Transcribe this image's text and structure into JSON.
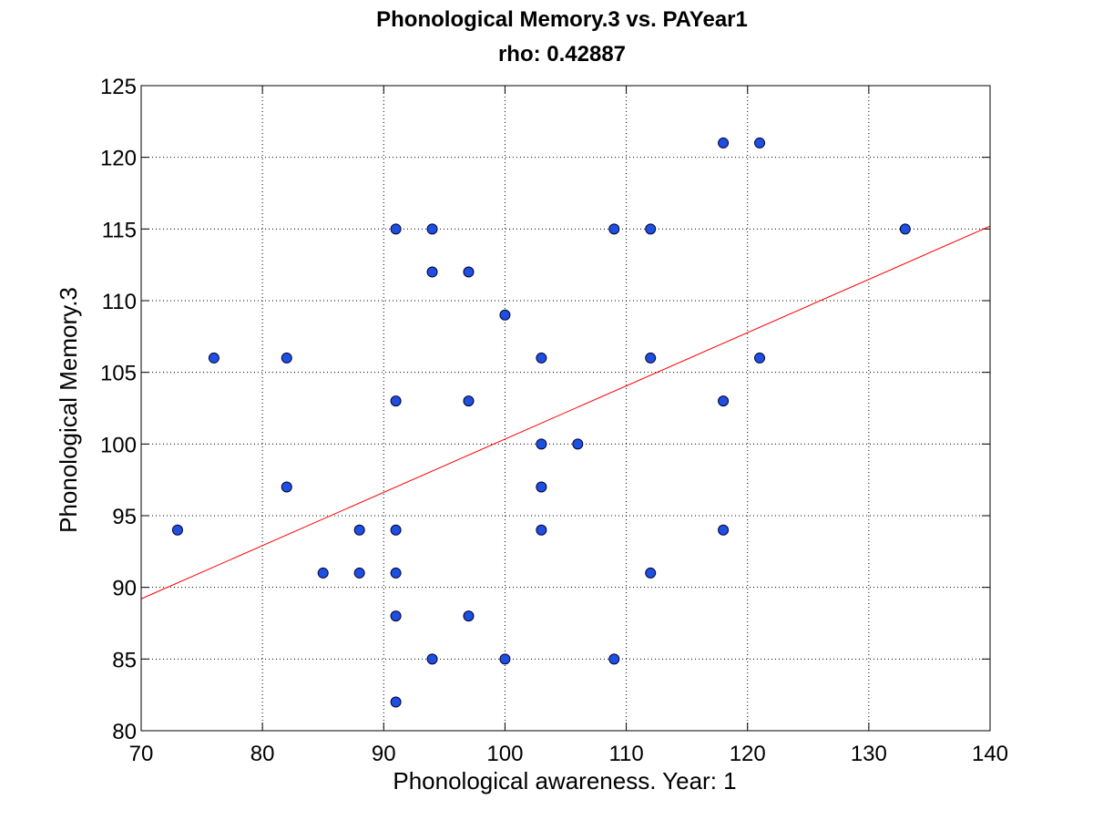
{
  "chart_data": {
    "type": "scatter",
    "title": "Phonological Memory.3 vs. PAYear1",
    "subtitle": "rho: 0.42887",
    "xlabel": "Phonological awareness. Year: 1",
    "ylabel": "Phonological Memory.3",
    "xlim": [
      70,
      140
    ],
    "ylim": [
      80,
      125
    ],
    "xticks": [
      70,
      80,
      90,
      100,
      110,
      120,
      130,
      140
    ],
    "yticks": [
      80,
      85,
      90,
      95,
      100,
      105,
      110,
      115,
      120,
      125
    ],
    "grid": true,
    "legend": "none",
    "colors": {
      "marker_fill": "#1f4fe0",
      "marker_edge": "#000033",
      "fit_line": "#ff0000"
    },
    "series": [
      {
        "x": [
          73,
          76,
          82,
          82,
          85,
          88,
          88,
          91,
          91,
          91,
          91,
          91,
          91,
          94,
          94,
          94,
          97,
          97,
          97,
          100,
          100,
          103,
          103,
          103,
          103,
          106,
          109,
          109,
          112,
          112,
          112,
          118,
          118,
          118,
          121,
          121,
          133
        ],
        "y": [
          94,
          106,
          106,
          97,
          91,
          94,
          91,
          115,
          103,
          94,
          91,
          88,
          82,
          115,
          112,
          85,
          112,
          103,
          88,
          109,
          85,
          106,
          100,
          97,
          94,
          100,
          115,
          85,
          115,
          106,
          91,
          121,
          103,
          94,
          121,
          106,
          115
        ]
      }
    ],
    "fit_line": {
      "x": [
        70,
        140
      ],
      "y": [
        89.2,
        115.2
      ]
    }
  }
}
